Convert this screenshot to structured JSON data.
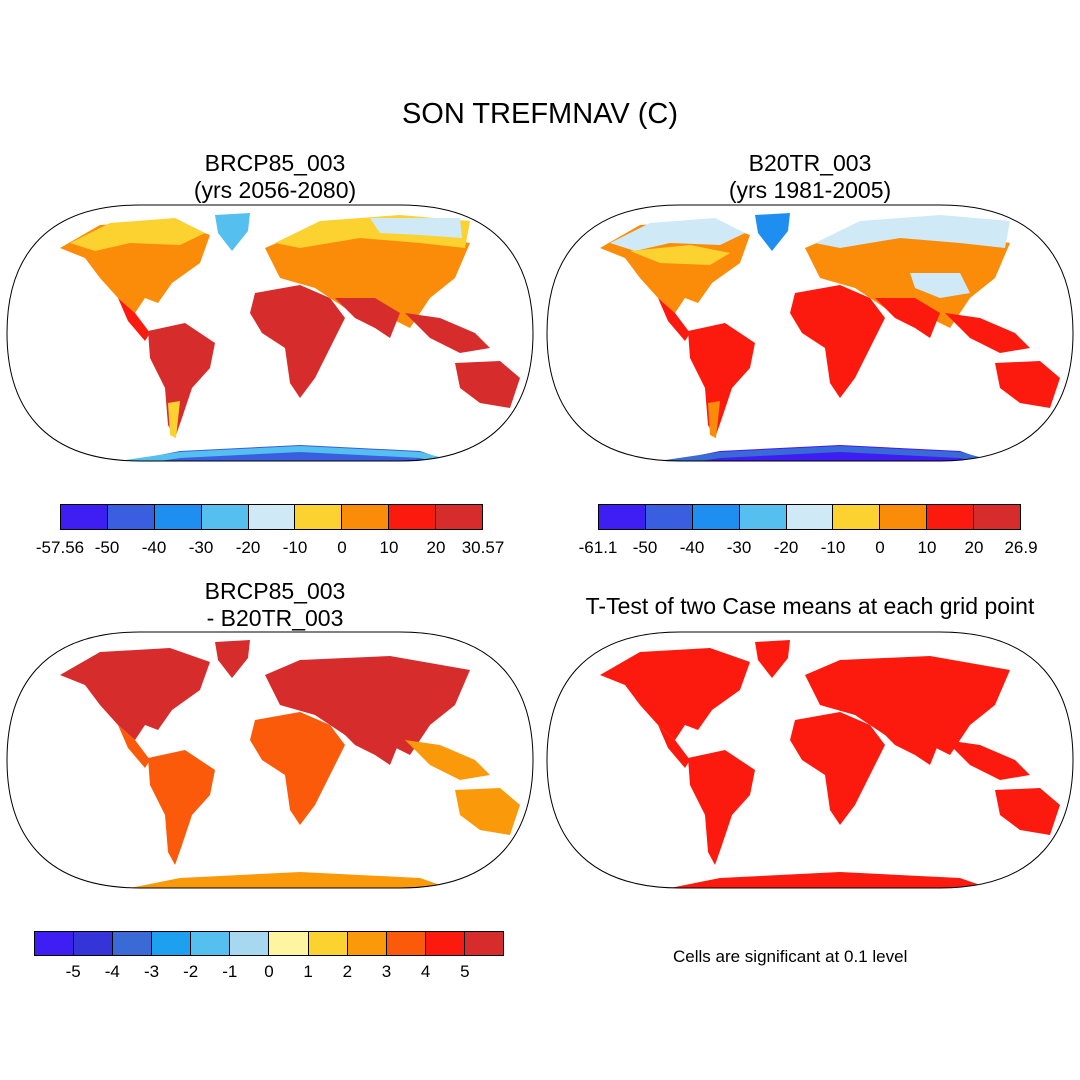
{
  "figure": {
    "title": "SON TREFMNAV (C)"
  },
  "panels": [
    {
      "id": "case1",
      "title_line1": "BRCP85_003",
      "title_line2": "(yrs 2056-2080)",
      "colorbar": {
        "colors": [
          "#3e1ef2",
          "#3a5ee0",
          "#1e8ff0",
          "#55bff0",
          "#cfe9f7",
          "#fcd230",
          "#fa8c0a",
          "#fc1a0e",
          "#d72c2c"
        ],
        "labels": [
          "-57.56",
          "-50",
          "-40",
          "-30",
          "-20",
          "-10",
          "0",
          "10",
          "20",
          "30.57"
        ]
      }
    },
    {
      "id": "case2",
      "title_line1": "B20TR_003",
      "title_line2": "(yrs 1981-2005)",
      "colorbar": {
        "colors": [
          "#3e1ef2",
          "#3a5ee0",
          "#1e8ff0",
          "#55bff0",
          "#cfe9f7",
          "#fcd230",
          "#fa8c0a",
          "#fc1a0e",
          "#d72c2c"
        ],
        "labels": [
          "-61.1",
          "-50",
          "-40",
          "-30",
          "-20",
          "-10",
          "0",
          "10",
          "20",
          "26.9"
        ]
      }
    },
    {
      "id": "difference",
      "title_line1": "BRCP85_003",
      "title_line2": "- B20TR_003",
      "colorbar": {
        "colors": [
          "#3e1ef2",
          "#3434d8",
          "#3a6ad6",
          "#1ea0f0",
          "#55bff0",
          "#a8d8f0",
          "#fff5a0",
          "#fcd230",
          "#fa9a0a",
          "#fa5a0a",
          "#fc1a0e",
          "#d72c2c"
        ],
        "labels": [
          "-5",
          "-4",
          "-3",
          "-2",
          "-1",
          "0",
          "1",
          "2",
          "3",
          "4",
          "5"
        ]
      }
    },
    {
      "id": "ttest",
      "title_line1": "T-Test of two Case means at each grid point",
      "note": "Cells are significant at 0.1 level"
    }
  ]
}
